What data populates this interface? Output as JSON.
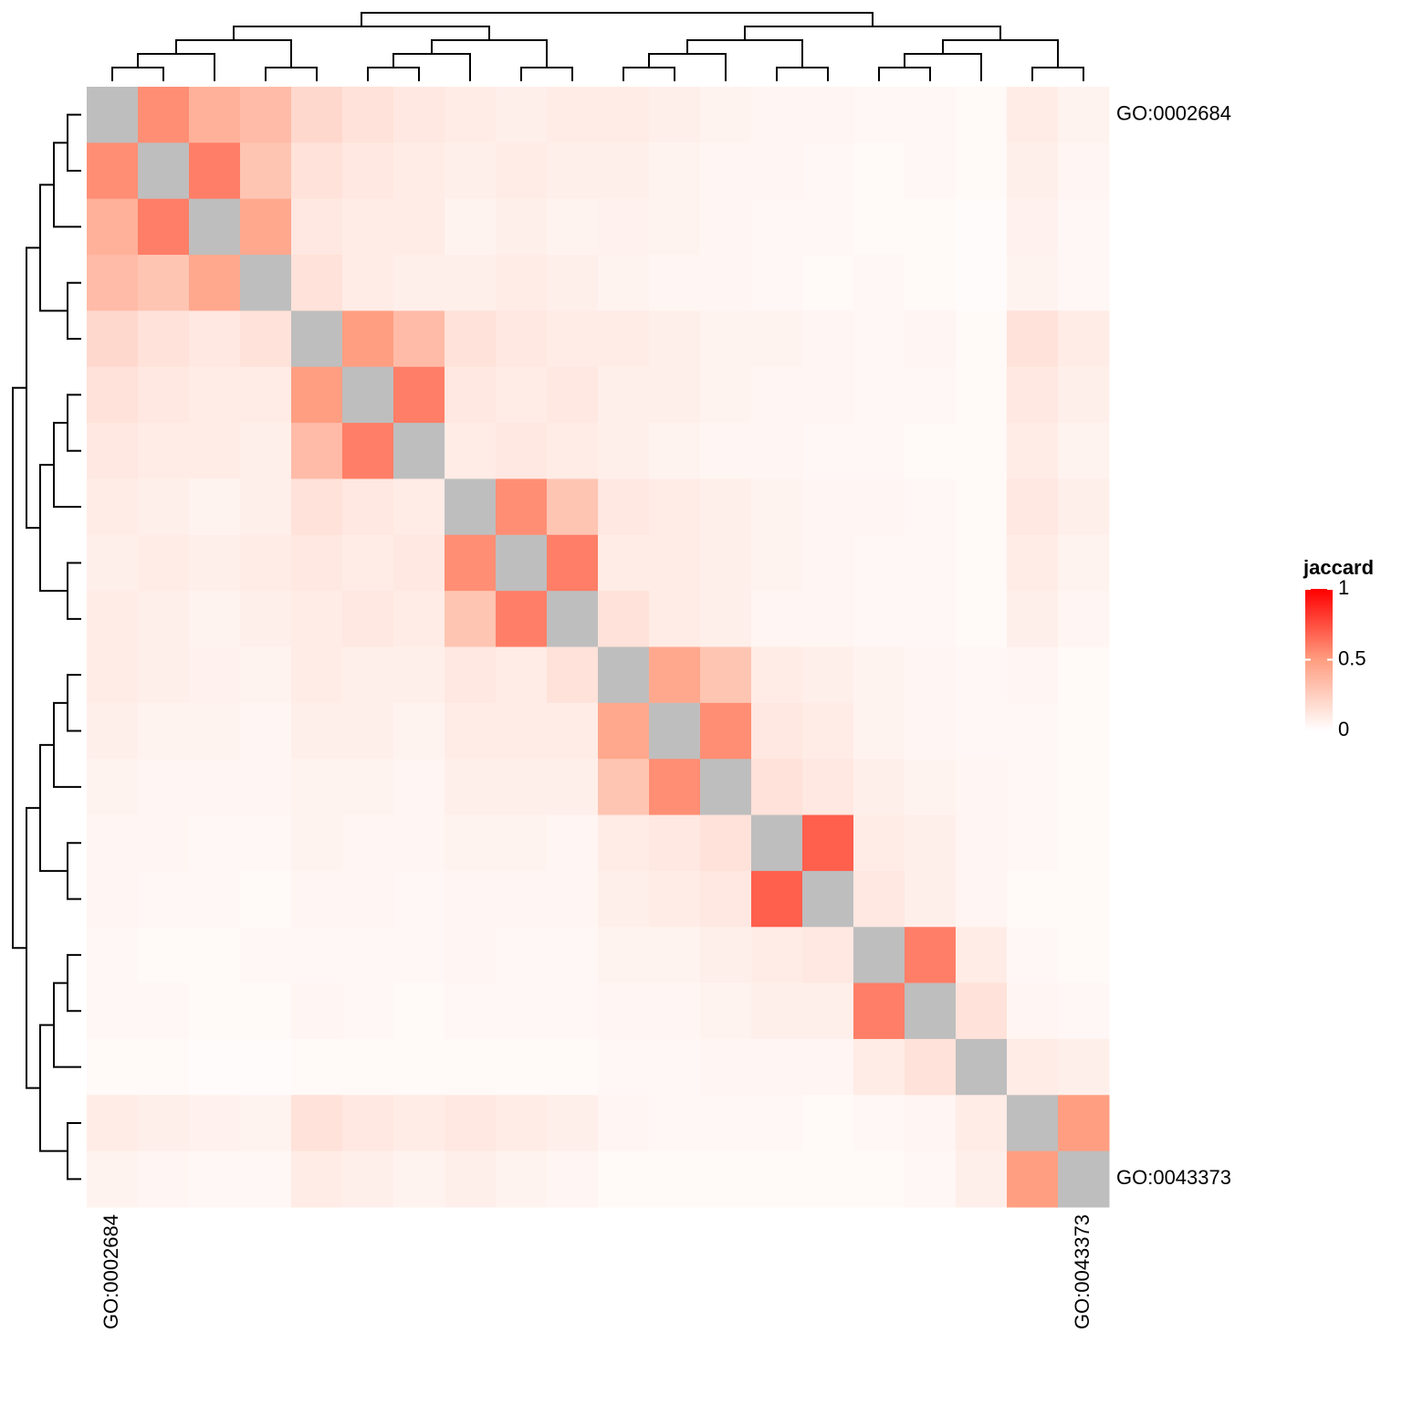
{
  "chart_data": {
    "type": "heatmap",
    "legend_title": "jaccard",
    "categories": [
      "GO:0002684",
      null,
      null,
      null,
      null,
      null,
      null,
      null,
      null,
      null,
      null,
      null,
      null,
      null,
      null,
      null,
      null,
      null,
      null,
      "GO:0043373"
    ],
    "values": [
      [
        null,
        0.55,
        0.4,
        0.35,
        0.2,
        0.15,
        0.12,
        0.1,
        0.08,
        0.1,
        0.1,
        0.08,
        0.06,
        0.05,
        0.05,
        0.04,
        0.04,
        0.03,
        0.1,
        0.06
      ],
      [
        0.55,
        null,
        0.6,
        0.3,
        0.15,
        0.12,
        0.1,
        0.08,
        0.1,
        0.08,
        0.08,
        0.06,
        0.05,
        0.05,
        0.04,
        0.03,
        0.04,
        0.03,
        0.08,
        0.05
      ],
      [
        0.4,
        0.6,
        null,
        0.45,
        0.12,
        0.1,
        0.1,
        0.06,
        0.08,
        0.06,
        0.07,
        0.06,
        0.05,
        0.04,
        0.04,
        0.03,
        0.03,
        0.02,
        0.07,
        0.04
      ],
      [
        0.35,
        0.3,
        0.45,
        null,
        0.15,
        0.1,
        0.08,
        0.08,
        0.1,
        0.08,
        0.06,
        0.05,
        0.05,
        0.04,
        0.03,
        0.04,
        0.03,
        0.02,
        0.06,
        0.04
      ],
      [
        0.2,
        0.15,
        0.12,
        0.15,
        null,
        0.5,
        0.35,
        0.15,
        0.12,
        0.1,
        0.1,
        0.08,
        0.06,
        0.06,
        0.05,
        0.04,
        0.05,
        0.03,
        0.15,
        0.1
      ],
      [
        0.15,
        0.12,
        0.1,
        0.1,
        0.5,
        null,
        0.6,
        0.12,
        0.1,
        0.12,
        0.08,
        0.08,
        0.06,
        0.05,
        0.05,
        0.04,
        0.04,
        0.03,
        0.12,
        0.08
      ],
      [
        0.12,
        0.1,
        0.1,
        0.08,
        0.35,
        0.6,
        null,
        0.1,
        0.12,
        0.1,
        0.08,
        0.06,
        0.05,
        0.05,
        0.04,
        0.04,
        0.03,
        0.03,
        0.1,
        0.06
      ],
      [
        0.1,
        0.08,
        0.06,
        0.08,
        0.15,
        0.12,
        0.1,
        null,
        0.55,
        0.3,
        0.12,
        0.1,
        0.08,
        0.06,
        0.05,
        0.05,
        0.04,
        0.03,
        0.12,
        0.08
      ],
      [
        0.08,
        0.1,
        0.08,
        0.1,
        0.12,
        0.1,
        0.12,
        0.55,
        null,
        0.6,
        0.1,
        0.1,
        0.08,
        0.06,
        0.05,
        0.04,
        0.04,
        0.03,
        0.1,
        0.06
      ],
      [
        0.1,
        0.08,
        0.06,
        0.08,
        0.1,
        0.12,
        0.1,
        0.3,
        0.6,
        null,
        0.15,
        0.1,
        0.08,
        0.05,
        0.05,
        0.04,
        0.04,
        0.03,
        0.08,
        0.05
      ],
      [
        0.1,
        0.08,
        0.07,
        0.06,
        0.1,
        0.08,
        0.08,
        0.12,
        0.1,
        0.15,
        null,
        0.45,
        0.3,
        0.1,
        0.08,
        0.06,
        0.05,
        0.04,
        0.05,
        0.03
      ],
      [
        0.08,
        0.06,
        0.06,
        0.05,
        0.08,
        0.08,
        0.06,
        0.1,
        0.1,
        0.1,
        0.45,
        null,
        0.55,
        0.12,
        0.1,
        0.06,
        0.05,
        0.04,
        0.04,
        0.03
      ],
      [
        0.06,
        0.05,
        0.05,
        0.05,
        0.06,
        0.06,
        0.05,
        0.08,
        0.08,
        0.08,
        0.3,
        0.55,
        null,
        0.15,
        0.12,
        0.08,
        0.06,
        0.05,
        0.04,
        0.03
      ],
      [
        0.05,
        0.05,
        0.04,
        0.04,
        0.06,
        0.05,
        0.05,
        0.06,
        0.06,
        0.05,
        0.1,
        0.12,
        0.15,
        null,
        0.7,
        0.1,
        0.08,
        0.05,
        0.04,
        0.03
      ],
      [
        0.05,
        0.04,
        0.04,
        0.03,
        0.05,
        0.05,
        0.04,
        0.05,
        0.05,
        0.05,
        0.08,
        0.1,
        0.12,
        0.7,
        null,
        0.12,
        0.08,
        0.05,
        0.03,
        0.03
      ],
      [
        0.04,
        0.03,
        0.03,
        0.04,
        0.04,
        0.04,
        0.04,
        0.05,
        0.04,
        0.04,
        0.06,
        0.06,
        0.08,
        0.1,
        0.12,
        null,
        0.6,
        0.1,
        0.04,
        0.03
      ],
      [
        0.04,
        0.04,
        0.03,
        0.03,
        0.05,
        0.04,
        0.03,
        0.04,
        0.04,
        0.04,
        0.05,
        0.05,
        0.06,
        0.08,
        0.08,
        0.6,
        null,
        0.15,
        0.05,
        0.04
      ],
      [
        0.03,
        0.03,
        0.02,
        0.02,
        0.03,
        0.03,
        0.03,
        0.03,
        0.03,
        0.03,
        0.04,
        0.04,
        0.05,
        0.05,
        0.05,
        0.1,
        0.15,
        null,
        0.1,
        0.08
      ],
      [
        0.1,
        0.08,
        0.07,
        0.06,
        0.15,
        0.12,
        0.1,
        0.12,
        0.1,
        0.08,
        0.05,
        0.04,
        0.04,
        0.04,
        0.03,
        0.04,
        0.05,
        0.1,
        null,
        0.5
      ],
      [
        0.06,
        0.05,
        0.04,
        0.04,
        0.1,
        0.08,
        0.06,
        0.08,
        0.06,
        0.05,
        0.03,
        0.03,
        0.03,
        0.03,
        0.03,
        0.03,
        0.04,
        0.08,
        0.5,
        null
      ]
    ],
    "clim": [
      0,
      1
    ],
    "colorbar_ticks": [
      0,
      0.5,
      1
    ],
    "colors": [
      "#ffffff",
      "#ff9e81",
      "#ff0000"
    ],
    "na_color": "#bebebe"
  }
}
